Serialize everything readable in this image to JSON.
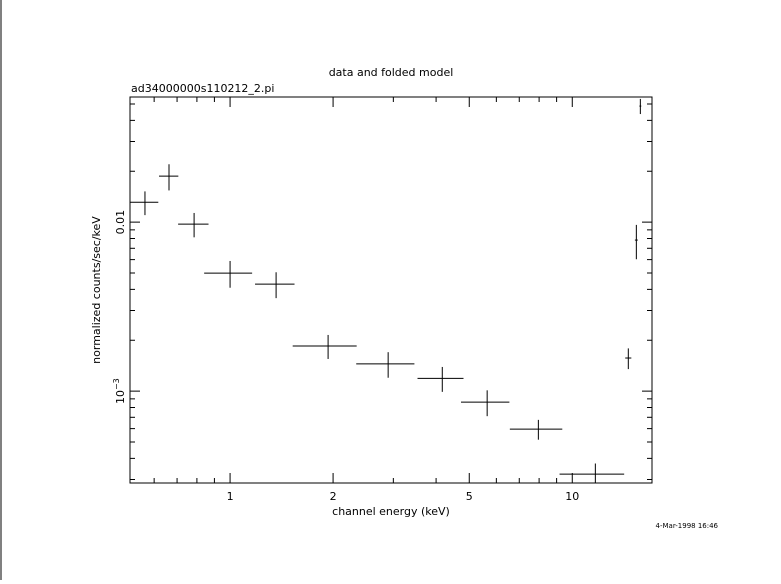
{
  "chart_data": {
    "type": "scatter",
    "title": "data and folded model",
    "subtitle": "ad34000000s110212_2.pi",
    "xlabel": "channel energy (keV)",
    "ylabel": "normalized counts/sec/keV",
    "timestamp": "4-Mar-1998 16:46",
    "xscale": "log",
    "yscale": "log",
    "xlim": [
      0.51,
      17.1
    ],
    "ylim": [
      0.000286,
      0.055
    ],
    "xticks": [
      1,
      2,
      5,
      10
    ],
    "x_minor_ticks": [
      0.6,
      0.7,
      0.8,
      0.9,
      3,
      4,
      6,
      7,
      8,
      9
    ],
    "yticks": [
      {
        "value": 0.001,
        "label": "10",
        "exponent": "−3"
      },
      0.01
    ],
    "y_minor_ticks": [
      0.0003,
      0.0004,
      0.0005,
      0.0006,
      0.0007,
      0.0008,
      0.0009,
      0.002,
      0.003,
      0.004,
      0.005,
      0.006,
      0.007,
      0.008,
      0.009,
      0.02,
      0.03,
      0.04,
      0.05
    ],
    "series": [
      {
        "color": "#000000",
        "x": [
          0.564,
          0.663,
          0.785,
          1.0,
          1.363,
          1.934,
          2.897,
          4.17,
          5.64,
          7.96,
          11.68,
          14.58,
          15.39,
          15.81
        ],
        "xerr": [
          0.053,
          0.043,
          0.08,
          0.16,
          0.18,
          0.41,
          0.56,
          0.64,
          0.91,
          1.39,
          2.5,
          0.3,
          0.15,
          0.1
        ],
        "values": [
          0.0131,
          0.0187,
          0.00973,
          0.00499,
          0.0043,
          0.00185,
          0.00145,
          0.00119,
          0.000861,
          0.000596,
          0.000323,
          0.00157,
          0.00783,
          0.0486
        ],
        "yerr": [
          0.0021,
          0.0033,
          0.0016,
          0.0009,
          0.00075,
          0.0003,
          0.00025,
          0.0002,
          0.00015,
          8e-05,
          5e-05,
          0.00022,
          0.0018,
          0.005
        ]
      }
    ]
  }
}
